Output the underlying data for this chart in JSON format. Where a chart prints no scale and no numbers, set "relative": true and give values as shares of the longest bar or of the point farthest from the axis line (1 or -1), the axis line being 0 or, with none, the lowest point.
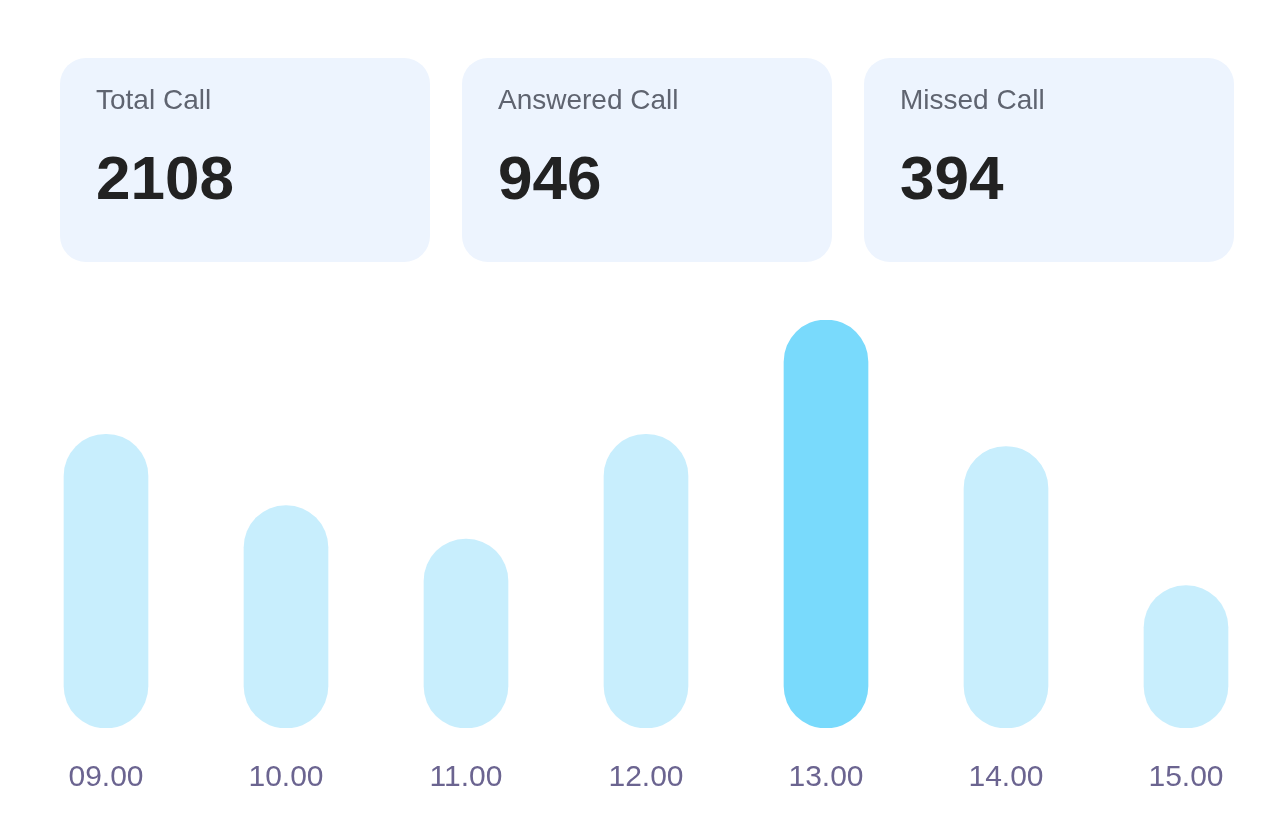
{
  "chart_data": [
    {
      "type": "other",
      "title": "Total Call",
      "annotations": [
        "2108"
      ]
    },
    {
      "type": "other",
      "title": "Answered Call",
      "annotations": [
        "946"
      ]
    },
    {
      "type": "other",
      "title": "Missed Call",
      "annotations": [
        "394"
      ]
    },
    {
      "type": "bar",
      "relative": true,
      "categories": [
        "09.00",
        "10.00",
        "11.00",
        "12.00",
        "13.00",
        "14.00",
        "15.00"
      ],
      "values": [
        0.72,
        0.545,
        0.463,
        0.72,
        1,
        0.69,
        0.349
      ],
      "colors": [
        "#c8eefd",
        "#c8eefd",
        "#c8eefd",
        "#c8eefd",
        "#79dafc",
        "#c8eefd",
        "#c8eefd"
      ]
    }
  ]
}
